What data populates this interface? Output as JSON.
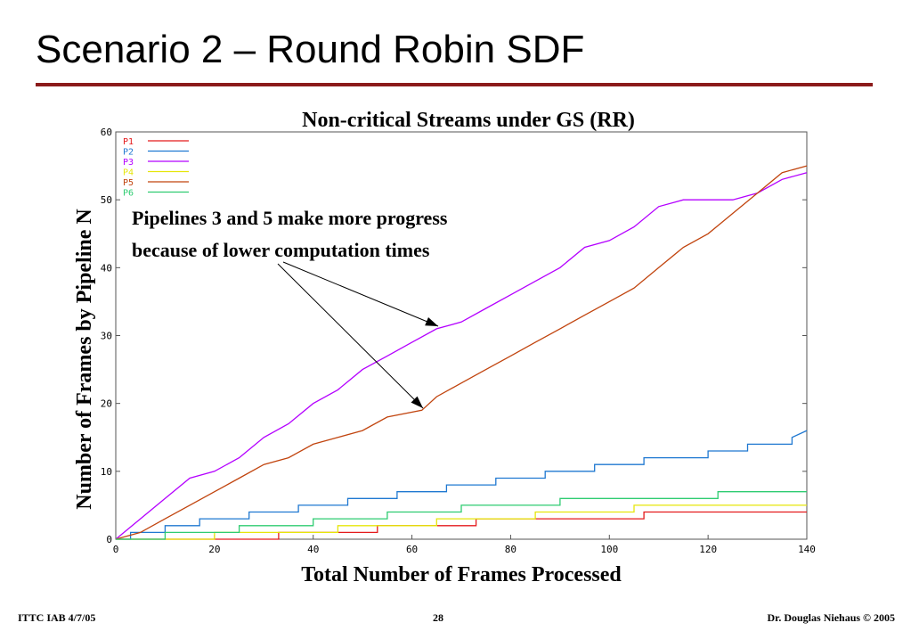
{
  "slide": {
    "title": "Scenario 2 – Round Robin SDF",
    "footer_left": "ITTC IAB  4/7/05",
    "page_number": "28",
    "footer_right": "Dr. Douglas Niehaus © 2005"
  },
  "colors": {
    "title_rule": "#8b1a1a"
  },
  "chart_data": {
    "type": "line",
    "title": "Non-critical Streams under GS (RR)",
    "xlabel": "Total Number of Frames Processed",
    "ylabel": "Number of Frames by Pipeline N",
    "xlim": [
      0,
      140
    ],
    "ylim": [
      0,
      60
    ],
    "xticks": [
      0,
      20,
      40,
      60,
      80,
      100,
      120,
      140
    ],
    "yticks": [
      0,
      10,
      20,
      30,
      40,
      50,
      60
    ],
    "grid": false,
    "legend_position": "top-left",
    "annotation": {
      "line1": "Pipelines 3 and 5 make more progress",
      "line2": "because of lower computation times"
    },
    "series": [
      {
        "name": "P1",
        "color": "#e41a1c",
        "points": [
          [
            0,
            0
          ],
          [
            33,
            0
          ],
          [
            33,
            1
          ],
          [
            53,
            1
          ],
          [
            53,
            2
          ],
          [
            73,
            2
          ],
          [
            73,
            3
          ],
          [
            107,
            3
          ],
          [
            107,
            4
          ],
          [
            140,
            4
          ]
        ]
      },
      {
        "name": "P2",
        "color": "#1f78d1",
        "points": [
          [
            0,
            0
          ],
          [
            3,
            0
          ],
          [
            3,
            1
          ],
          [
            10,
            1
          ],
          [
            10,
            2
          ],
          [
            17,
            2
          ],
          [
            17,
            3
          ],
          [
            27,
            3
          ],
          [
            27,
            4
          ],
          [
            37,
            4
          ],
          [
            37,
            5
          ],
          [
            47,
            5
          ],
          [
            47,
            6
          ],
          [
            57,
            6
          ],
          [
            57,
            7
          ],
          [
            67,
            7
          ],
          [
            67,
            8
          ],
          [
            77,
            8
          ],
          [
            77,
            9
          ],
          [
            87,
            9
          ],
          [
            87,
            10
          ],
          [
            97,
            10
          ],
          [
            97,
            11
          ],
          [
            107,
            11
          ],
          [
            107,
            12
          ],
          [
            120,
            12
          ],
          [
            120,
            13
          ],
          [
            128,
            13
          ],
          [
            128,
            14
          ],
          [
            137,
            14
          ],
          [
            137,
            15
          ],
          [
            140,
            16
          ]
        ]
      },
      {
        "name": "P3",
        "color": "#b400ff",
        "points": [
          [
            0,
            0
          ],
          [
            5,
            3
          ],
          [
            10,
            6
          ],
          [
            15,
            9
          ],
          [
            20,
            10
          ],
          [
            25,
            12
          ],
          [
            30,
            15
          ],
          [
            35,
            17
          ],
          [
            40,
            20
          ],
          [
            45,
            22
          ],
          [
            50,
            25
          ],
          [
            55,
            27
          ],
          [
            60,
            29
          ],
          [
            65,
            31
          ],
          [
            70,
            32
          ],
          [
            75,
            34
          ],
          [
            80,
            36
          ],
          [
            85,
            38
          ],
          [
            90,
            40
          ],
          [
            95,
            43
          ],
          [
            100,
            44
          ],
          [
            105,
            46
          ],
          [
            110,
            49
          ],
          [
            115,
            50
          ],
          [
            120,
            50
          ],
          [
            125,
            50
          ],
          [
            130,
            51
          ],
          [
            135,
            53
          ],
          [
            140,
            54
          ]
        ]
      },
      {
        "name": "P4",
        "color": "#e6e60a",
        "points": [
          [
            0,
            0
          ],
          [
            20,
            0
          ],
          [
            20,
            1
          ],
          [
            45,
            1
          ],
          [
            45,
            2
          ],
          [
            65,
            2
          ],
          [
            65,
            3
          ],
          [
            85,
            3
          ],
          [
            85,
            4
          ],
          [
            105,
            4
          ],
          [
            105,
            5
          ],
          [
            140,
            5
          ]
        ]
      },
      {
        "name": "P5",
        "color": "#c1440e",
        "points": [
          [
            0,
            0
          ],
          [
            5,
            1
          ],
          [
            10,
            3
          ],
          [
            15,
            5
          ],
          [
            20,
            7
          ],
          [
            25,
            9
          ],
          [
            30,
            11
          ],
          [
            35,
            12
          ],
          [
            40,
            14
          ],
          [
            45,
            15
          ],
          [
            50,
            16
          ],
          [
            55,
            18
          ],
          [
            62,
            19
          ],
          [
            65,
            21
          ],
          [
            70,
            23
          ],
          [
            75,
            25
          ],
          [
            80,
            27
          ],
          [
            85,
            29
          ],
          [
            90,
            31
          ],
          [
            95,
            33
          ],
          [
            100,
            35
          ],
          [
            105,
            37
          ],
          [
            110,
            40
          ],
          [
            115,
            43
          ],
          [
            120,
            45
          ],
          [
            125,
            48
          ],
          [
            130,
            51
          ],
          [
            135,
            54
          ],
          [
            140,
            55
          ]
        ]
      },
      {
        "name": "P6",
        "color": "#2ecc71",
        "points": [
          [
            0,
            0
          ],
          [
            10,
            0
          ],
          [
            10,
            1
          ],
          [
            25,
            1
          ],
          [
            25,
            2
          ],
          [
            40,
            2
          ],
          [
            40,
            3
          ],
          [
            55,
            3
          ],
          [
            55,
            4
          ],
          [
            70,
            4
          ],
          [
            70,
            5
          ],
          [
            90,
            5
          ],
          [
            90,
            6
          ],
          [
            110,
            6
          ],
          [
            110,
            6
          ],
          [
            122,
            6
          ],
          [
            122,
            7
          ],
          [
            140,
            7
          ]
        ]
      }
    ]
  }
}
